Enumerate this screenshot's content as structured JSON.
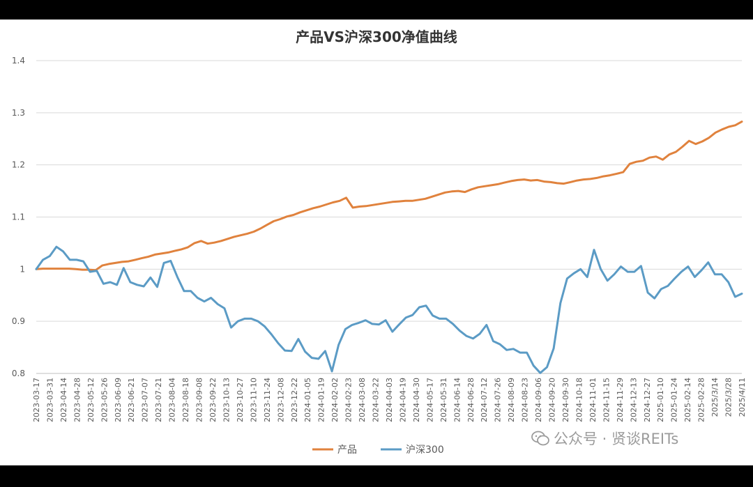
{
  "chart_data": {
    "type": "line",
    "title": "产品VS沪深300净值曲线",
    "xlabel": "",
    "ylabel": "",
    "ylim": [
      0.8,
      1.4
    ],
    "yticks": [
      "0.8",
      "0.9",
      "1",
      "1.1",
      "1.2",
      "1.3",
      "1.4"
    ],
    "grid": true,
    "legend_position": "bottom",
    "x_tick_labels": [
      "2023-03-17",
      "2023-03-31",
      "2023-04-14",
      "2023-04-28",
      "2023-05-12",
      "2023-05-26",
      "2023-06-09",
      "2023-06-21",
      "2023-07-07",
      "2023-07-21",
      "2023-08-04",
      "2023-08-18",
      "2023-09-08",
      "2023-09-22",
      "2023-10-13",
      "2023-10-27",
      "2023-11-10",
      "2023-11-24",
      "2023-12-08",
      "2023-12-22",
      "2024-01-05",
      "2024-01-19",
      "2024-02-02",
      "2024-02-23",
      "2024-03-08",
      "2024-03-22",
      "2024-04-03",
      "2024-04-19",
      "2024-04-30",
      "2024-05-17",
      "2024-05-31",
      "2024-06-14",
      "2024-06-28",
      "2024-07-12",
      "2024-07-26",
      "2024-08-09",
      "2024-08-23",
      "2024-09-06",
      "2024-09-20",
      "2024-09-30",
      "2024-10-18",
      "2024-11-01",
      "2024-11-15",
      "2024-11-29",
      "2024-12-13",
      "2024-12-27",
      "2025-01-10",
      "2025-01-24",
      "2025-02-14",
      "2025-02-28",
      "2025/3/14",
      "2025/3/28",
      "2025/4/11"
    ],
    "series": [
      {
        "name": "产品",
        "color": "#E0823D",
        "values": [
          1.0,
          1.001,
          1.001,
          1.001,
          1.001,
          1.001,
          1.0,
          0.999,
          0.999,
          0.998,
          1.007,
          1.01,
          1.012,
          1.014,
          1.015,
          1.018,
          1.021,
          1.024,
          1.028,
          1.03,
          1.032,
          1.035,
          1.038,
          1.042,
          1.05,
          1.054,
          1.049,
          1.051,
          1.054,
          1.058,
          1.062,
          1.065,
          1.068,
          1.072,
          1.078,
          1.085,
          1.092,
          1.096,
          1.101,
          1.104,
          1.109,
          1.113,
          1.117,
          1.12,
          1.124,
          1.128,
          1.131,
          1.137,
          1.118,
          1.12,
          1.121,
          1.123,
          1.125,
          1.127,
          1.129,
          1.13,
          1.131,
          1.131,
          1.133,
          1.135,
          1.139,
          1.143,
          1.147,
          1.149,
          1.15,
          1.148,
          1.153,
          1.157,
          1.159,
          1.161,
          1.163,
          1.166,
          1.169,
          1.171,
          1.172,
          1.17,
          1.171,
          1.168,
          1.167,
          1.165,
          1.164,
          1.167,
          1.17,
          1.172,
          1.173,
          1.175,
          1.178,
          1.18,
          1.183,
          1.186,
          1.202,
          1.206,
          1.208,
          1.214,
          1.216,
          1.21,
          1.22,
          1.225,
          1.235,
          1.246,
          1.24,
          1.245,
          1.252,
          1.262,
          1.268,
          1.273,
          1.276,
          1.283
        ]
      },
      {
        "name": "沪深300",
        "color": "#5B9BC5",
        "values": [
          1.0,
          1.018,
          1.025,
          1.043,
          1.034,
          1.018,
          1.018,
          1.015,
          0.995,
          0.997,
          0.972,
          0.975,
          0.97,
          1.002,
          0.975,
          0.97,
          0.967,
          0.984,
          0.966,
          1.012,
          1.016,
          0.985,
          0.958,
          0.958,
          0.945,
          0.938,
          0.945,
          0.933,
          0.925,
          0.888,
          0.9,
          0.905,
          0.905,
          0.9,
          0.89,
          0.875,
          0.858,
          0.844,
          0.843,
          0.866,
          0.842,
          0.83,
          0.828,
          0.843,
          0.804,
          0.855,
          0.885,
          0.893,
          0.897,
          0.902,
          0.895,
          0.894,
          0.902,
          0.88,
          0.894,
          0.907,
          0.912,
          0.927,
          0.93,
          0.911,
          0.905,
          0.905,
          0.895,
          0.882,
          0.872,
          0.867,
          0.876,
          0.893,
          0.862,
          0.856,
          0.845,
          0.847,
          0.84,
          0.84,
          0.815,
          0.801,
          0.812,
          0.848,
          0.935,
          0.982,
          0.992,
          1.0,
          0.985,
          1.037,
          1.0,
          0.978,
          0.99,
          1.005,
          0.995,
          0.995,
          1.006,
          0.955,
          0.944,
          0.962,
          0.968,
          0.982,
          0.995,
          1.005,
          0.985,
          0.998,
          1.013,
          0.99,
          0.99,
          0.975,
          0.947,
          0.953
        ]
      }
    ]
  },
  "watermark": {
    "text": "公众号 · 贤谈REITs",
    "icon": "wechat-icon"
  }
}
